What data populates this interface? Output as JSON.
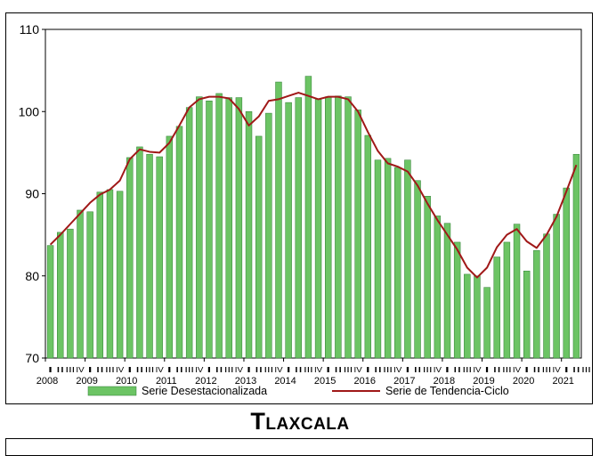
{
  "region_title": "Tlaxcala",
  "colors": {
    "bar_fill": "#6cc464",
    "bar_stroke": "#2e7d32",
    "trend_line": "#a01818",
    "plot_border": "#000000"
  },
  "chart_data": {
    "type": "bar",
    "title": "",
    "xlabel": "",
    "ylabel": "",
    "ylim": [
      70,
      110
    ],
    "yticks": [
      70,
      80,
      90,
      100,
      110
    ],
    "years": [
      "2008",
      "2009",
      "2010",
      "2011",
      "2012",
      "2013",
      "2014",
      "2015",
      "2016",
      "2017",
      "2018",
      "2019",
      "2020",
      "2021"
    ],
    "quarters_per_year": [
      "I",
      "II",
      "III",
      "IV"
    ],
    "last_year_quarters": 3,
    "series": [
      {
        "name": "Serie Desestacionalizada",
        "kind": "bar",
        "values": [
          83.7,
          85.3,
          85.7,
          88.0,
          87.8,
          90.2,
          90.5,
          90.3,
          94.4,
          95.7,
          94.8,
          94.5,
          97.0,
          98.2,
          100.5,
          101.8,
          101.3,
          102.2,
          101.7,
          101.7,
          100.0,
          97.0,
          99.8,
          103.6,
          101.1,
          101.7,
          104.3,
          101.5,
          101.8,
          101.9,
          101.8,
          100.2,
          97.1,
          94.1,
          94.3,
          93.2,
          94.1,
          91.6,
          89.7,
          87.3,
          86.4,
          84.1,
          80.2,
          80.0,
          78.6,
          82.3,
          84.1,
          86.3,
          80.6,
          83.1,
          85.1,
          87.5,
          90.7,
          94.8
        ]
      },
      {
        "name": "Serie de Tendencia-Ciclo",
        "kind": "line",
        "values": [
          83.8,
          85.0,
          86.3,
          87.6,
          88.9,
          89.9,
          90.5,
          91.6,
          94.2,
          95.4,
          95.1,
          95.0,
          96.2,
          98.3,
          100.5,
          101.5,
          101.8,
          101.8,
          101.6,
          100.3,
          98.3,
          99.4,
          101.3,
          101.5,
          101.9,
          102.3,
          101.9,
          101.5,
          101.8,
          101.8,
          101.5,
          100.0,
          97.5,
          95.2,
          93.7,
          93.3,
          92.7,
          91.0,
          88.8,
          86.8,
          85.0,
          83.2,
          81.0,
          79.8,
          81.0,
          83.5,
          85.0,
          85.7,
          84.2,
          83.4,
          85.0,
          87.2,
          90.3,
          93.5
        ]
      }
    ],
    "legend": {
      "position": "bottom"
    },
    "grid": false
  }
}
